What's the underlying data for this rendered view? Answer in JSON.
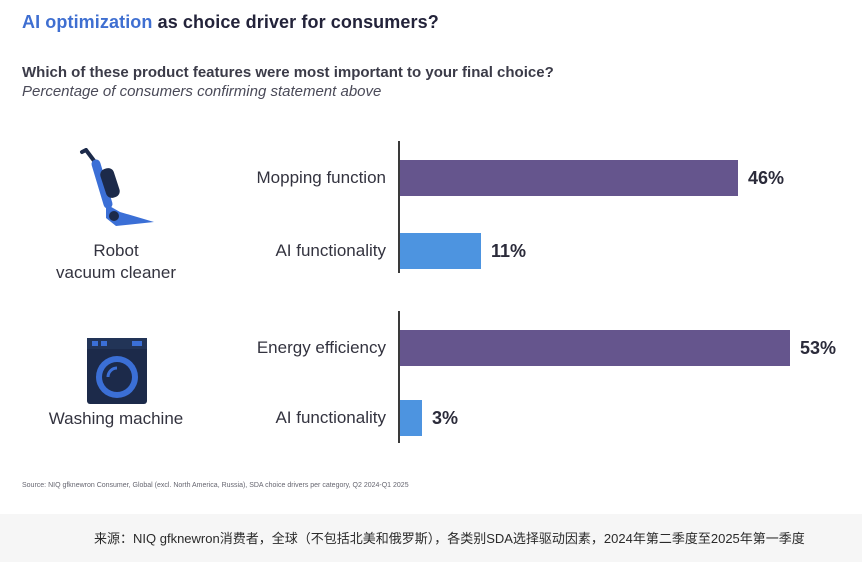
{
  "header": {
    "title_highlight": "AI optimization",
    "title_rest": " as choice driver for consumers?",
    "question": "Which of these product features were most important to your final choice?",
    "subtitle": "Percentage of consumers confirming statement above"
  },
  "colors": {
    "primary_bar": "#65558d",
    "secondary_bar": "#4d94e0",
    "title_highlight": "#3f6fd1",
    "icon_blue": "#3b6fd6",
    "icon_dark": "#1c2a4a"
  },
  "chart_data": {
    "type": "bar",
    "orientation": "horizontal",
    "unit": "%",
    "groups": [
      {
        "category": "Robot vacuum cleaner",
        "category_lines": [
          "Robot",
          "vacuum cleaner"
        ],
        "icon": "robot-vacuum-icon",
        "bars": [
          {
            "label": "Mopping function",
            "value": 46,
            "display": "46%",
            "color": "primary"
          },
          {
            "label": "AI functionality",
            "value": 11,
            "display": "11%",
            "color": "secondary"
          }
        ]
      },
      {
        "category": "Washing machine",
        "category_lines": [
          "Washing machine"
        ],
        "icon": "washing-machine-icon",
        "bars": [
          {
            "label": "Energy efficiency",
            "value": 53,
            "display": "53%",
            "color": "primary"
          },
          {
            "label": "AI functionality",
            "value": 3,
            "display": "3%",
            "color": "secondary"
          }
        ]
      }
    ],
    "xlim": [
      0,
      53
    ]
  },
  "source": "Source: NIQ gfknewron Consumer, Global (excl. North America, Russia), SDA choice drivers per category, Q2 2024-Q1 2025",
  "footer_note": "来源：NIQ gfknewron消费者，全球（不包括北美和俄罗斯），各类别SDA选择驱动因素，2024年第二季度至2025年第一季度"
}
